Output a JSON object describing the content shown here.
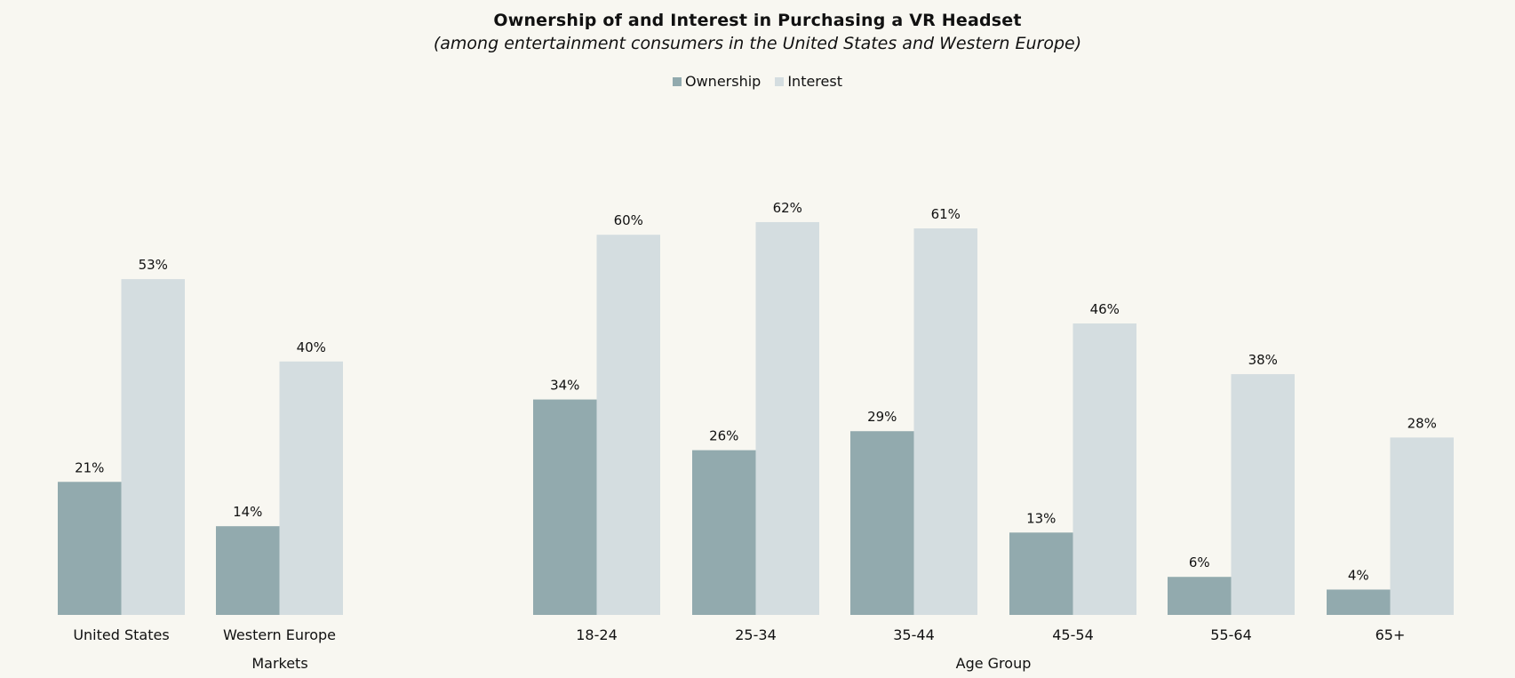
{
  "chart_data": {
    "type": "bar",
    "title": "Ownership of and Interest in Purchasing a VR Headset",
    "subtitle": "(among entertainment consumers in the United States and Western Europe)",
    "legend": {
      "placement": "top-center"
    },
    "colors": {
      "Ownership": "#92aaae",
      "Interest": "#d4dde0",
      "background": "#f8f7f1"
    },
    "grid": false,
    "ylim": [
      0,
      65
    ],
    "groups": [
      {
        "xlabel": "Markets",
        "categories": [
          "United States",
          "Western Europe"
        ],
        "series": [
          {
            "name": "Ownership",
            "values": [
              21,
              14
            ]
          },
          {
            "name": "Interest",
            "values": [
              53,
              40
            ]
          }
        ]
      },
      {
        "xlabel": "Age Group",
        "categories": [
          "18-24",
          "25-34",
          "35-44",
          "45-54",
          "55-64",
          "65+"
        ],
        "series": [
          {
            "name": "Ownership",
            "values": [
              34,
              26,
              29,
              13,
              6,
              4
            ]
          },
          {
            "name": "Interest",
            "values": [
              60,
              62,
              61,
              46,
              38,
              28
            ]
          }
        ]
      }
    ]
  }
}
